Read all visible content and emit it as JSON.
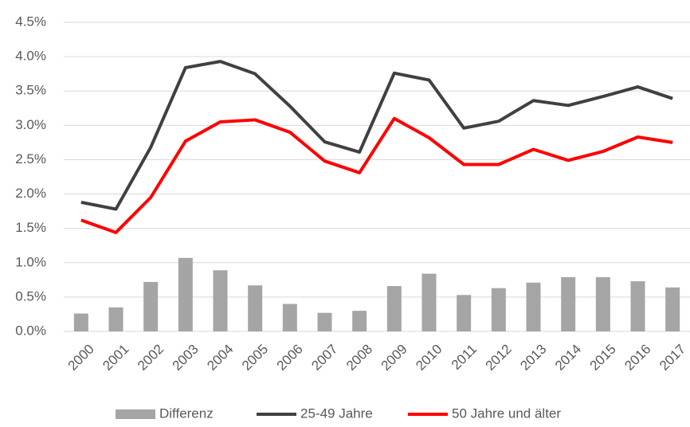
{
  "chart_data": {
    "type": "combo",
    "categories": [
      "2000",
      "2001",
      "2002",
      "2003",
      "2004",
      "2005",
      "2006",
      "2007",
      "2008",
      "2009",
      "2010",
      "2011",
      "2012",
      "2013",
      "2014",
      "2015",
      "2016",
      "2017"
    ],
    "series": [
      {
        "name": "Differenz",
        "type": "bar",
        "color": "#a5a5a5",
        "values": [
          0.26,
          0.35,
          0.72,
          1.07,
          0.89,
          0.67,
          0.4,
          0.27,
          0.3,
          0.66,
          0.84,
          0.53,
          0.63,
          0.71,
          0.79,
          0.79,
          0.73,
          0.64
        ]
      },
      {
        "name": "25-49 Jahre",
        "type": "line",
        "color": "#404040",
        "values": [
          1.88,
          1.78,
          2.68,
          3.84,
          3.93,
          3.75,
          3.28,
          2.76,
          2.61,
          3.76,
          3.66,
          2.96,
          3.06,
          3.36,
          3.29,
          3.42,
          3.56,
          3.39
        ]
      },
      {
        "name": "50 Jahre und älter",
        "type": "line",
        "color": "#ff0000",
        "values": [
          1.62,
          1.44,
          1.95,
          2.77,
          3.05,
          3.08,
          2.9,
          2.48,
          2.31,
          3.1,
          2.82,
          2.43,
          2.43,
          2.65,
          2.49,
          2.62,
          2.83,
          2.75
        ]
      }
    ],
    "ylim": [
      0,
      4.5
    ],
    "yticks": [
      {
        "value": 0,
        "label": "0.0%"
      },
      {
        "value": 0.5,
        "label": "0.5%"
      },
      {
        "value": 1,
        "label": "1.0%"
      },
      {
        "value": 1.5,
        "label": "1.5%"
      },
      {
        "value": 2,
        "label": "2.0%"
      },
      {
        "value": 2.5,
        "label": "2.5%"
      },
      {
        "value": 3,
        "label": "3.0%"
      },
      {
        "value": 3.5,
        "label": "3.5%"
      },
      {
        "value": 4,
        "label": "4.0%"
      },
      {
        "value": 4.5,
        "label": "4.5%"
      }
    ],
    "grid": true,
    "legend": "bottom"
  }
}
